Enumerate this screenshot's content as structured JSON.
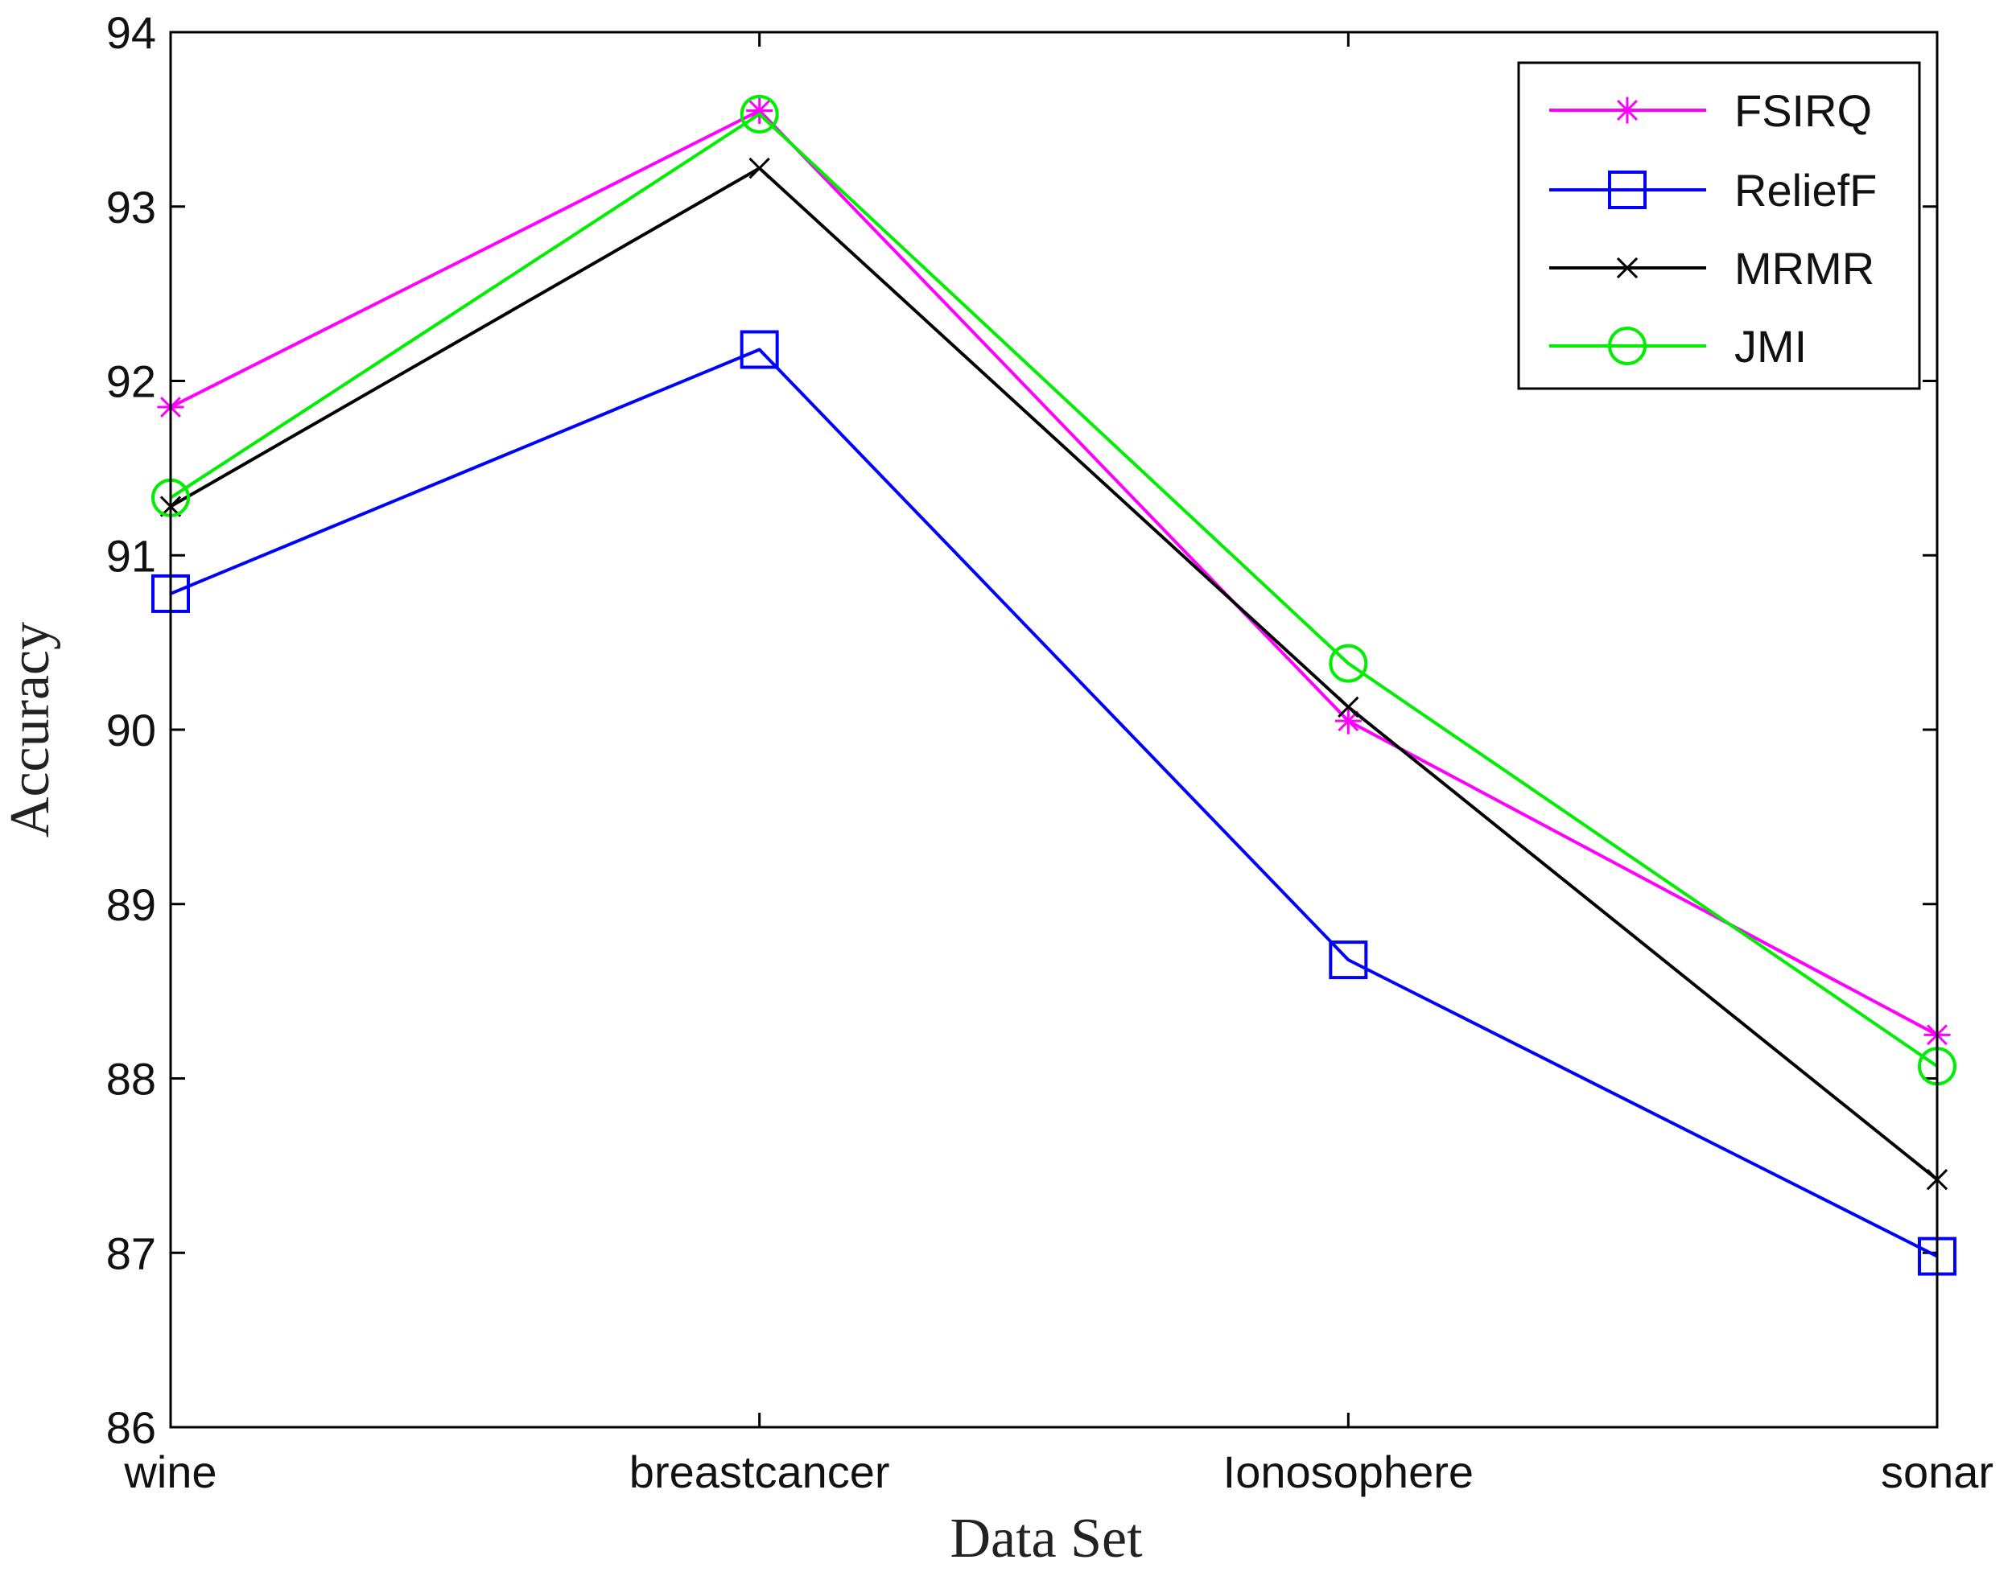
{
  "chart_data": {
    "type": "line",
    "title": "",
    "xlabel": "Data Set",
    "ylabel": "Accuracy",
    "categories": [
      "wine",
      "breastcancer",
      "Ionosophere",
      "sonar"
    ],
    "ylim": [
      86,
      94
    ],
    "yticks": [
      86,
      87,
      88,
      89,
      90,
      91,
      92,
      93,
      94
    ],
    "grid": false,
    "legend_position": "top-right",
    "series": [
      {
        "name": "FSIRQ",
        "color": "#ff00ff",
        "marker": "asterisk",
        "values": [
          91.85,
          93.55,
          90.05,
          88.25
        ]
      },
      {
        "name": "ReliefF",
        "color": "#0000ff",
        "marker": "square",
        "values": [
          90.78,
          92.18,
          88.68,
          86.98
        ]
      },
      {
        "name": "MRMR",
        "color": "#000000",
        "marker": "x",
        "values": [
          91.28,
          93.22,
          90.13,
          87.42
        ]
      },
      {
        "name": "JMI",
        "color": "#00ee00",
        "marker": "circle",
        "values": [
          91.33,
          93.53,
          90.38,
          88.07
        ]
      }
    ]
  }
}
